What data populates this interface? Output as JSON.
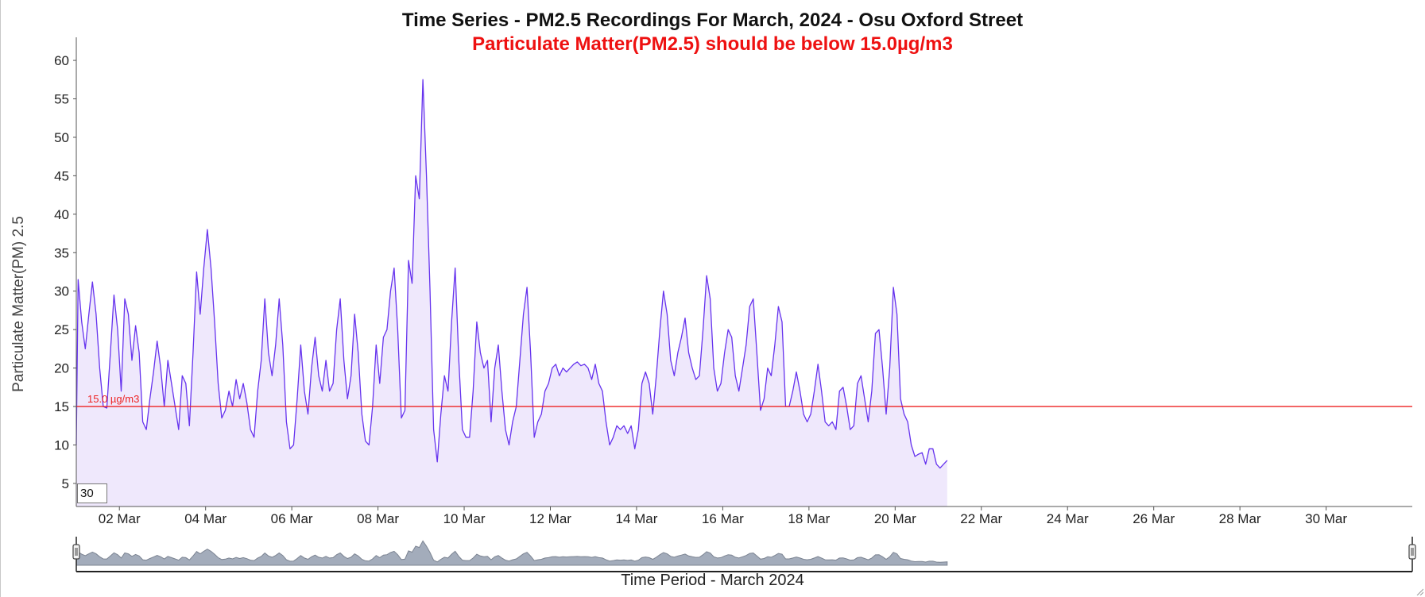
{
  "title": "Time Series - PM2.5 Recordings For March, 2024 - Osu Oxford Street",
  "subtitle": "Particulate Matter(PM2.5) should be below 15.0µg/m3",
  "roll_period": "30",
  "colors": {
    "line": "#6633ee",
    "fill": "#efe8fc",
    "threshold": "#ee2222",
    "overview_fill": "#9aa4b4",
    "overview_line": "#6e7787"
  },
  "chart_data": {
    "type": "area",
    "title": "Time Series - PM2.5 Recordings For March, 2024 - Osu Oxford Street",
    "subtitle": "Particulate Matter(PM2.5) should be below 15.0µg/m3",
    "xlabel": "Time Period - March 2024",
    "ylabel": "Particulate Matter(PM) 2.5",
    "xlim": [
      "2024-03-01T00:00",
      "2024-03-31T23:59"
    ],
    "ylim": [
      2,
      63
    ],
    "yticks": [
      5,
      10,
      15,
      20,
      25,
      30,
      35,
      40,
      45,
      50,
      55,
      60
    ],
    "xticks": [
      "02 Mar",
      "04 Mar",
      "06 Mar",
      "08 Mar",
      "10 Mar",
      "12 Mar",
      "14 Mar",
      "16 Mar",
      "18 Mar",
      "20 Mar",
      "22 Mar",
      "24 Mar",
      "26 Mar",
      "28 Mar",
      "30 Mar"
    ],
    "grid": false,
    "threshold": {
      "value": 15.0,
      "label": "15.0 µg/m3"
    },
    "series": [
      {
        "unit": "µg/m3",
        "points": [
          [
            "2024-03-01T00:00",
            10
          ],
          [
            "2024-03-01T01:00",
            31.5
          ],
          [
            "2024-03-01T03:00",
            26
          ],
          [
            "2024-03-01T05:00",
            22.5
          ],
          [
            "2024-03-01T07:00",
            27
          ],
          [
            "2024-03-01T09:00",
            31.2
          ],
          [
            "2024-03-01T11:00",
            27
          ],
          [
            "2024-03-01T13:00",
            20
          ],
          [
            "2024-03-01T15:00",
            15
          ],
          [
            "2024-03-01T17:00",
            14.8
          ],
          [
            "2024-03-01T19:00",
            22
          ],
          [
            "2024-03-01T21:00",
            29.5
          ],
          [
            "2024-03-01T23:00",
            25
          ],
          [
            "2024-03-02T01:00",
            17
          ],
          [
            "2024-03-02T03:00",
            29
          ],
          [
            "2024-03-02T05:00",
            27
          ],
          [
            "2024-03-02T07:00",
            21
          ],
          [
            "2024-03-02T09:00",
            25.5
          ],
          [
            "2024-03-02T11:00",
            22
          ],
          [
            "2024-03-02T13:00",
            13
          ],
          [
            "2024-03-02T15:00",
            12
          ],
          [
            "2024-03-02T17:00",
            16
          ],
          [
            "2024-03-02T19:00",
            19.5
          ],
          [
            "2024-03-02T21:00",
            23.5
          ],
          [
            "2024-03-02T23:00",
            20
          ],
          [
            "2024-03-03T01:00",
            15
          ],
          [
            "2024-03-03T03:00",
            21
          ],
          [
            "2024-03-03T05:00",
            18
          ],
          [
            "2024-03-03T07:00",
            15
          ],
          [
            "2024-03-03T09:00",
            12
          ],
          [
            "2024-03-03T11:00",
            19
          ],
          [
            "2024-03-03T13:00",
            18
          ],
          [
            "2024-03-03T15:00",
            12.5
          ],
          [
            "2024-03-03T17:00",
            22
          ],
          [
            "2024-03-03T19:00",
            32.5
          ],
          [
            "2024-03-03T21:00",
            27
          ],
          [
            "2024-03-03T23:00",
            33
          ],
          [
            "2024-03-04T01:00",
            38
          ],
          [
            "2024-03-04T03:00",
            33
          ],
          [
            "2024-03-04T05:00",
            26
          ],
          [
            "2024-03-04T07:00",
            18
          ],
          [
            "2024-03-04T09:00",
            13.5
          ],
          [
            "2024-03-04T11:00",
            14.5
          ],
          [
            "2024-03-04T13:00",
            17
          ],
          [
            "2024-03-04T15:00",
            15
          ],
          [
            "2024-03-04T17:00",
            18.5
          ],
          [
            "2024-03-04T19:00",
            16
          ],
          [
            "2024-03-04T21:00",
            18
          ],
          [
            "2024-03-04T23:00",
            15.5
          ],
          [
            "2024-03-05T01:00",
            12
          ],
          [
            "2024-03-05T03:00",
            11
          ],
          [
            "2024-03-05T05:00",
            17
          ],
          [
            "2024-03-05T07:00",
            21
          ],
          [
            "2024-03-05T09:00",
            29
          ],
          [
            "2024-03-05T11:00",
            22
          ],
          [
            "2024-03-05T13:00",
            19
          ],
          [
            "2024-03-05T15:00",
            23
          ],
          [
            "2024-03-05T17:00",
            29
          ],
          [
            "2024-03-05T19:00",
            23
          ],
          [
            "2024-03-05T21:00",
            13
          ],
          [
            "2024-03-05T23:00",
            9.5
          ],
          [
            "2024-03-06T01:00",
            10
          ],
          [
            "2024-03-06T03:00",
            16
          ],
          [
            "2024-03-06T05:00",
            23
          ],
          [
            "2024-03-06T07:00",
            17
          ],
          [
            "2024-03-06T09:00",
            14
          ],
          [
            "2024-03-06T11:00",
            20
          ],
          [
            "2024-03-06T13:00",
            24
          ],
          [
            "2024-03-06T15:00",
            19
          ],
          [
            "2024-03-06T17:00",
            17
          ],
          [
            "2024-03-06T19:00",
            21
          ],
          [
            "2024-03-06T21:00",
            17
          ],
          [
            "2024-03-06T23:00",
            18
          ],
          [
            "2024-03-07T01:00",
            25
          ],
          [
            "2024-03-07T03:00",
            29
          ],
          [
            "2024-03-07T05:00",
            21
          ],
          [
            "2024-03-07T07:00",
            16
          ],
          [
            "2024-03-07T09:00",
            19
          ],
          [
            "2024-03-07T11:00",
            27
          ],
          [
            "2024-03-07T13:00",
            22
          ],
          [
            "2024-03-07T15:00",
            14
          ],
          [
            "2024-03-07T17:00",
            10.5
          ],
          [
            "2024-03-07T19:00",
            10
          ],
          [
            "2024-03-07T21:00",
            15
          ],
          [
            "2024-03-07T23:00",
            23
          ],
          [
            "2024-03-08T01:00",
            18
          ],
          [
            "2024-03-08T03:00",
            24
          ],
          [
            "2024-03-08T05:00",
            25
          ],
          [
            "2024-03-08T07:00",
            30
          ],
          [
            "2024-03-08T09:00",
            33
          ],
          [
            "2024-03-08T11:00",
            25
          ],
          [
            "2024-03-08T13:00",
            13.5
          ],
          [
            "2024-03-08T15:00",
            14.5
          ],
          [
            "2024-03-08T17:00",
            34
          ],
          [
            "2024-03-08T19:00",
            31
          ],
          [
            "2024-03-08T21:00",
            45
          ],
          [
            "2024-03-08T23:00",
            42
          ],
          [
            "2024-03-09T01:00",
            57.5
          ],
          [
            "2024-03-09T03:00",
            45
          ],
          [
            "2024-03-09T05:00",
            30
          ],
          [
            "2024-03-09T07:00",
            12
          ],
          [
            "2024-03-09T09:00",
            7.8
          ],
          [
            "2024-03-09T11:00",
            14
          ],
          [
            "2024-03-09T13:00",
            19
          ],
          [
            "2024-03-09T15:00",
            17
          ],
          [
            "2024-03-09T17:00",
            26
          ],
          [
            "2024-03-09T19:00",
            33
          ],
          [
            "2024-03-09T21:00",
            21
          ],
          [
            "2024-03-09T23:00",
            12
          ],
          [
            "2024-03-10T01:00",
            11
          ],
          [
            "2024-03-10T03:00",
            11
          ],
          [
            "2024-03-10T05:00",
            17
          ],
          [
            "2024-03-10T07:00",
            26
          ],
          [
            "2024-03-10T09:00",
            22
          ],
          [
            "2024-03-10T11:00",
            20
          ],
          [
            "2024-03-10T13:00",
            21
          ],
          [
            "2024-03-10T15:00",
            13
          ],
          [
            "2024-03-10T17:00",
            20
          ],
          [
            "2024-03-10T19:00",
            23
          ],
          [
            "2024-03-10T21:00",
            17
          ],
          [
            "2024-03-10T23:00",
            12
          ],
          [
            "2024-03-11T01:00",
            10
          ],
          [
            "2024-03-11T03:00",
            13
          ],
          [
            "2024-03-11T05:00",
            15
          ],
          [
            "2024-03-11T07:00",
            21
          ],
          [
            "2024-03-11T09:00",
            27
          ],
          [
            "2024-03-11T11:00",
            30.5
          ],
          [
            "2024-03-11T13:00",
            22
          ],
          [
            "2024-03-11T15:00",
            11
          ],
          [
            "2024-03-11T17:00",
            13
          ],
          [
            "2024-03-11T19:00",
            14
          ],
          [
            "2024-03-11T21:00",
            17
          ],
          [
            "2024-03-11T23:00",
            18
          ],
          [
            "2024-03-12T01:00",
            20
          ],
          [
            "2024-03-12T03:00",
            20.5
          ],
          [
            "2024-03-12T05:00",
            19
          ],
          [
            "2024-03-12T07:00",
            20
          ],
          [
            "2024-03-12T09:00",
            19.5
          ],
          [
            "2024-03-12T11:00",
            20
          ],
          [
            "2024-03-12T13:00",
            20.5
          ],
          [
            "2024-03-12T15:00",
            20.8
          ],
          [
            "2024-03-12T17:00",
            20.3
          ],
          [
            "2024-03-12T19:00",
            20.5
          ],
          [
            "2024-03-12T21:00",
            20
          ],
          [
            "2024-03-12T23:00",
            18.5
          ],
          [
            "2024-03-13T01:00",
            20.5
          ],
          [
            "2024-03-13T03:00",
            18
          ],
          [
            "2024-03-13T05:00",
            17
          ],
          [
            "2024-03-13T07:00",
            13
          ],
          [
            "2024-03-13T09:00",
            10
          ],
          [
            "2024-03-13T11:00",
            11
          ],
          [
            "2024-03-13T13:00",
            12.5
          ],
          [
            "2024-03-13T15:00",
            12
          ],
          [
            "2024-03-13T17:00",
            12.5
          ],
          [
            "2024-03-13T19:00",
            11.5
          ],
          [
            "2024-03-13T21:00",
            12.5
          ],
          [
            "2024-03-13T23:00",
            9.5
          ],
          [
            "2024-03-14T01:00",
            12
          ],
          [
            "2024-03-14T03:00",
            18
          ],
          [
            "2024-03-14T05:00",
            19.5
          ],
          [
            "2024-03-14T07:00",
            18
          ],
          [
            "2024-03-14T09:00",
            14
          ],
          [
            "2024-03-14T11:00",
            19
          ],
          [
            "2024-03-14T13:00",
            25
          ],
          [
            "2024-03-14T15:00",
            30
          ],
          [
            "2024-03-14T17:00",
            27
          ],
          [
            "2024-03-14T19:00",
            21
          ],
          [
            "2024-03-14T21:00",
            19
          ],
          [
            "2024-03-14T23:00",
            22
          ],
          [
            "2024-03-15T01:00",
            24
          ],
          [
            "2024-03-15T03:00",
            26.5
          ],
          [
            "2024-03-15T05:00",
            22
          ],
          [
            "2024-03-15T07:00",
            20
          ],
          [
            "2024-03-15T09:00",
            18.5
          ],
          [
            "2024-03-15T11:00",
            19
          ],
          [
            "2024-03-15T13:00",
            25
          ],
          [
            "2024-03-15T15:00",
            32
          ],
          [
            "2024-03-15T17:00",
            29
          ],
          [
            "2024-03-15T19:00",
            20
          ],
          [
            "2024-03-15T21:00",
            17
          ],
          [
            "2024-03-15T23:00",
            18
          ],
          [
            "2024-03-16T01:00",
            22
          ],
          [
            "2024-03-16T03:00",
            25
          ],
          [
            "2024-03-16T05:00",
            24
          ],
          [
            "2024-03-16T07:00",
            19
          ],
          [
            "2024-03-16T09:00",
            17
          ],
          [
            "2024-03-16T11:00",
            20
          ],
          [
            "2024-03-16T13:00",
            23
          ],
          [
            "2024-03-16T15:00",
            28
          ],
          [
            "2024-03-16T17:00",
            29
          ],
          [
            "2024-03-16T19:00",
            22
          ],
          [
            "2024-03-16T21:00",
            14.5
          ],
          [
            "2024-03-16T23:00",
            16
          ],
          [
            "2024-03-17T01:00",
            20
          ],
          [
            "2024-03-17T03:00",
            19
          ],
          [
            "2024-03-17T05:00",
            23
          ],
          [
            "2024-03-17T07:00",
            28
          ],
          [
            "2024-03-17T09:00",
            26
          ],
          [
            "2024-03-17T11:00",
            15
          ],
          [
            "2024-03-17T13:00",
            15
          ],
          [
            "2024-03-17T15:00",
            17
          ],
          [
            "2024-03-17T17:00",
            19.5
          ],
          [
            "2024-03-17T19:00",
            17
          ],
          [
            "2024-03-17T21:00",
            14
          ],
          [
            "2024-03-17T23:00",
            13
          ],
          [
            "2024-03-18T01:00",
            14
          ],
          [
            "2024-03-18T03:00",
            17
          ],
          [
            "2024-03-18T05:00",
            20.5
          ],
          [
            "2024-03-18T07:00",
            17
          ],
          [
            "2024-03-18T09:00",
            13
          ],
          [
            "2024-03-18T11:00",
            12.5
          ],
          [
            "2024-03-18T13:00",
            13
          ],
          [
            "2024-03-18T15:00",
            12
          ],
          [
            "2024-03-18T17:00",
            17
          ],
          [
            "2024-03-18T19:00",
            17.5
          ],
          [
            "2024-03-18T21:00",
            15
          ],
          [
            "2024-03-18T23:00",
            12
          ],
          [
            "2024-03-19T01:00",
            12.5
          ],
          [
            "2024-03-19T03:00",
            18
          ],
          [
            "2024-03-19T05:00",
            19
          ],
          [
            "2024-03-19T07:00",
            16
          ],
          [
            "2024-03-19T09:00",
            13
          ],
          [
            "2024-03-19T11:00",
            17
          ],
          [
            "2024-03-19T13:00",
            24.5
          ],
          [
            "2024-03-19T15:00",
            25
          ],
          [
            "2024-03-19T17:00",
            20
          ],
          [
            "2024-03-19T19:00",
            14
          ],
          [
            "2024-03-19T21:00",
            20
          ],
          [
            "2024-03-19T23:00",
            30.5
          ],
          [
            "2024-03-20T01:00",
            27
          ],
          [
            "2024-03-20T03:00",
            16
          ],
          [
            "2024-03-20T05:00",
            14
          ],
          [
            "2024-03-20T07:00",
            13
          ],
          [
            "2024-03-20T09:00",
            10
          ],
          [
            "2024-03-20T11:00",
            8.5
          ],
          [
            "2024-03-20T13:00",
            8.8
          ],
          [
            "2024-03-20T15:00",
            9
          ],
          [
            "2024-03-20T17:00",
            7.5
          ],
          [
            "2024-03-20T19:00",
            9.5
          ],
          [
            "2024-03-20T21:00",
            9.5
          ],
          [
            "2024-03-20T23:00",
            7.5
          ],
          [
            "2024-03-21T01:00",
            7
          ],
          [
            "2024-03-21T03:00",
            7.5
          ],
          [
            "2024-03-21T05:00",
            8
          ]
        ]
      }
    ]
  }
}
